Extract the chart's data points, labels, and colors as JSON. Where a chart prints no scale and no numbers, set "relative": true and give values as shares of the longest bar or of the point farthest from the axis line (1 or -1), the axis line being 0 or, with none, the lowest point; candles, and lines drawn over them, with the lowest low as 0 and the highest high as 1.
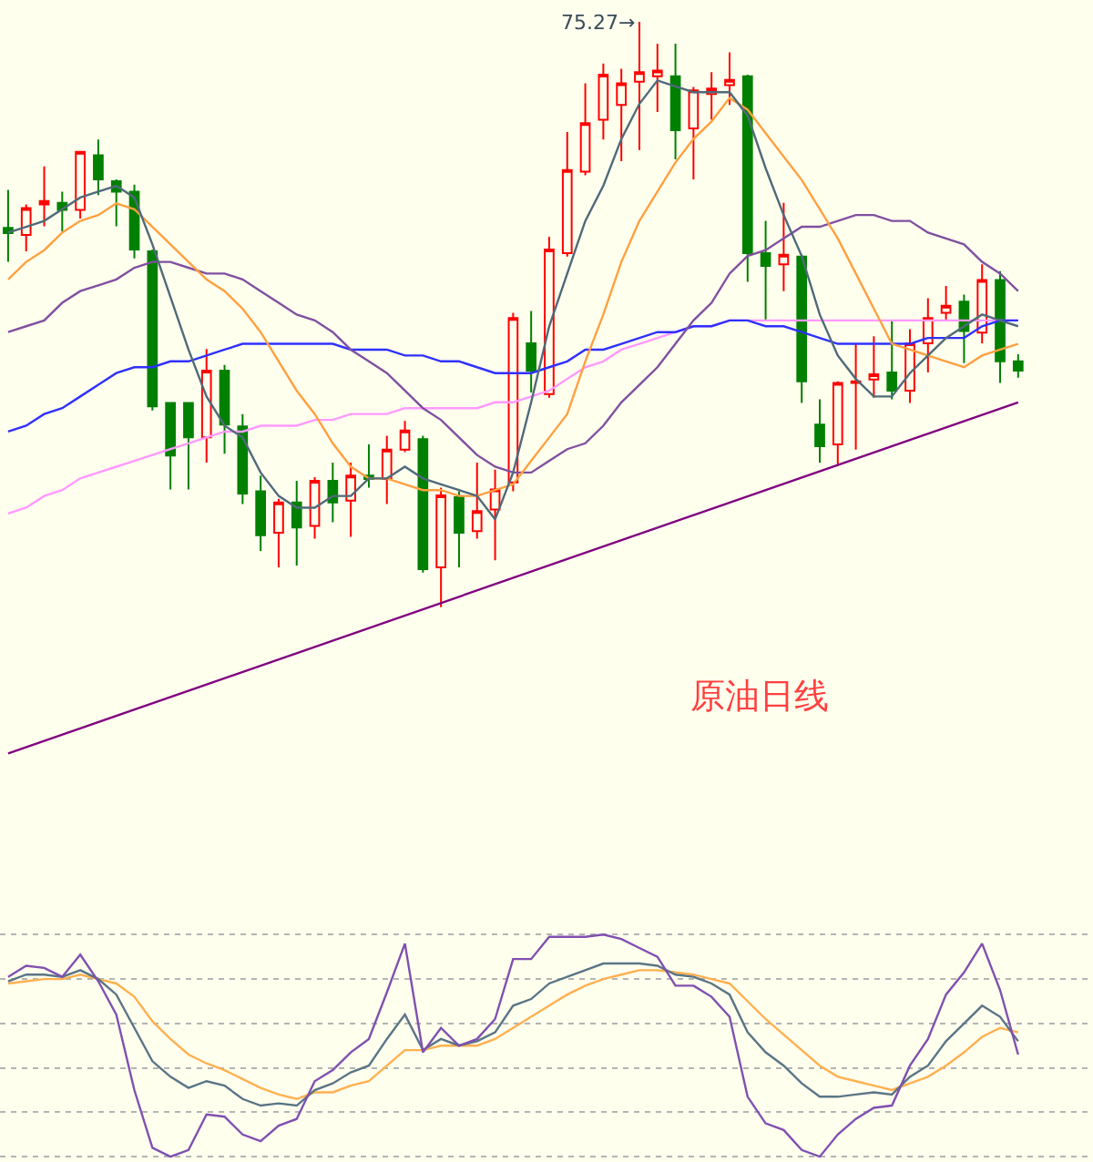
{
  "chart_data": [
    {
      "type": "candlestick",
      "relative": true,
      "title": "原油日线",
      "annotations": [
        "75.27→"
      ],
      "categories": [
        null,
        null,
        null,
        null,
        null,
        null,
        null,
        null,
        null,
        null,
        null,
        null,
        null,
        null,
        null,
        null,
        null,
        null,
        null,
        null,
        null,
        null,
        null,
        null,
        null,
        null,
        null,
        null,
        null,
        null,
        null,
        null,
        null,
        null,
        null,
        null,
        null,
        null,
        null,
        null,
        null,
        null,
        null,
        null,
        null,
        null,
        null,
        null,
        null,
        null,
        null,
        null,
        null,
        null,
        null,
        null,
        null
      ],
      "ohlc": [
        [
          0.648,
          0.713,
          0.59,
          0.639
        ],
        [
          0.636,
          0.688,
          0.608,
          0.682
        ],
        [
          0.688,
          0.753,
          0.651,
          0.694
        ],
        [
          0.691,
          0.71,
          0.642,
          0.679
        ],
        [
          0.679,
          0.778,
          0.664,
          0.778
        ],
        [
          0.772,
          0.799,
          0.704,
          0.731
        ],
        [
          0.728,
          0.731,
          0.651,
          0.71
        ],
        [
          0.71,
          0.722,
          0.596,
          0.611
        ],
        [
          0.608,
          0.611,
          0.336,
          0.343
        ],
        [
          0.349,
          0.349,
          0.201,
          0.259
        ],
        [
          0.349,
          0.349,
          0.201,
          0.29
        ],
        [
          0.29,
          0.441,
          0.247,
          0.404
        ],
        [
          0.404,
          0.414,
          0.262,
          0.312
        ],
        [
          0.309,
          0.33,
          0.176,
          0.194
        ],
        [
          0.198,
          0.225,
          0.096,
          0.123
        ],
        [
          0.127,
          0.185,
          0.068,
          0.179
        ],
        [
          0.179,
          0.216,
          0.071,
          0.136
        ],
        [
          0.139,
          0.222,
          0.117,
          0.216
        ],
        [
          0.216,
          0.247,
          0.145,
          0.179
        ],
        [
          0.182,
          0.247,
          0.12,
          0.225
        ],
        [
          0.225,
          0.278,
          0.204,
          0.219
        ],
        [
          0.219,
          0.293,
          0.176,
          0.269
        ],
        [
          0.269,
          0.318,
          0.265,
          0.302
        ],
        [
          0.287,
          0.293,
          0.059,
          0.065
        ],
        [
          0.068,
          0.204,
          0,
          0.191
        ],
        [
          0.188,
          0.198,
          0.068,
          0.127
        ],
        [
          0.13,
          0.247,
          0.117,
          0.164
        ],
        [
          0.167,
          0.235,
          0.08,
          0.201
        ],
        [
          0.213,
          0.503,
          0.198,
          0.494
        ],
        [
          0.451,
          0.506,
          0.367,
          0.404
        ],
        [
          0.364,
          0.633,
          0.358,
          0.611
        ],
        [
          0.605,
          0.812,
          0.599,
          0.747
        ],
        [
          0.744,
          0.895,
          0.738,
          0.827
        ],
        [
          0.833,
          0.929,
          0.799,
          0.91
        ],
        [
          0.858,
          0.92,
          0.762,
          0.895
        ],
        [
          0.898,
          1,
          0.781,
          0.914
        ],
        [
          0.907,
          0.963,
          0.846,
          0.917
        ],
        [
          0.907,
          0.963,
          0.765,
          0.815
        ],
        [
          0.818,
          0.889,
          0.731,
          0.883
        ],
        [
          0.877,
          0.914,
          0.833,
          0.886
        ],
        [
          0.892,
          0.948,
          0.858,
          0.901
        ],
        [
          0.907,
          0.91,
          0.556,
          0.605
        ],
        [
          0.605,
          0.66,
          0.491,
          0.583
        ],
        [
          0.586,
          0.691,
          0.54,
          0.602
        ],
        [
          0.599,
          0.602,
          0.349,
          0.386
        ],
        [
          0.312,
          0.355,
          0.247,
          0.275
        ],
        [
          0.278,
          0.386,
          0.241,
          0.383
        ],
        [
          0.383,
          0.451,
          0.269,
          0.386
        ],
        [
          0.389,
          0.463,
          0.358,
          0.398
        ],
        [
          0.401,
          0.488,
          0.355,
          0.37
        ],
        [
          0.37,
          0.475,
          0.349,
          0.451
        ],
        [
          0.451,
          0.528,
          0.401,
          0.494
        ],
        [
          0.503,
          0.549,
          0.491,
          0.515
        ],
        [
          0.522,
          0.534,
          0.417,
          0.472
        ],
        [
          0.469,
          0.586,
          0.451,
          0.559
        ],
        [
          0.559,
          0.574,
          0.383,
          0.42
        ],
        [
          0.42,
          0.432,
          0.392,
          0.404
        ]
      ],
      "series": [
        {
          "type": "line",
          "color": "#ff99ff",
          "values": [
            0.16,
            0.17,
            0.19,
            0.2,
            0.22,
            0.23,
            0.24,
            0.25,
            0.26,
            0.27,
            0.28,
            0.29,
            0.3,
            0.3,
            0.31,
            0.31,
            0.31,
            0.32,
            0.32,
            0.33,
            0.33,
            0.33,
            0.34,
            0.34,
            0.34,
            0.34,
            0.34,
            0.35,
            0.35,
            0.36,
            0.37,
            0.39,
            0.41,
            0.42,
            0.44,
            0.45,
            0.46,
            0.47,
            0.48,
            0.48,
            0.49,
            0.49,
            0.49,
            0.49,
            0.49,
            0.49,
            0.49,
            0.49,
            0.49,
            0.49,
            0.49,
            0.49,
            0.49,
            0.49,
            0.49,
            0.49,
            0.49
          ]
        },
        {
          "type": "line",
          "color": "#3030ff",
          "values": [
            0.3,
            0.31,
            0.33,
            0.34,
            0.36,
            0.38,
            0.4,
            0.41,
            0.41,
            0.42,
            0.42,
            0.43,
            0.44,
            0.45,
            0.45,
            0.45,
            0.45,
            0.45,
            0.45,
            0.44,
            0.44,
            0.44,
            0.43,
            0.43,
            0.42,
            0.42,
            0.41,
            0.4,
            0.4,
            0.4,
            0.41,
            0.42,
            0.44,
            0.44,
            0.45,
            0.46,
            0.47,
            0.47,
            0.48,
            0.48,
            0.49,
            0.49,
            0.48,
            0.48,
            0.47,
            0.46,
            0.45,
            0.45,
            0.45,
            0.45,
            0.45,
            0.46,
            0.46,
            0.46,
            0.48,
            0.49,
            0.49
          ]
        },
        {
          "type": "line",
          "color": "#8050a0",
          "values": [
            0.47,
            0.48,
            0.49,
            0.52,
            0.54,
            0.55,
            0.56,
            0.58,
            0.59,
            0.59,
            0.58,
            0.57,
            0.57,
            0.56,
            0.54,
            0.52,
            0.5,
            0.49,
            0.47,
            0.44,
            0.42,
            0.4,
            0.37,
            0.34,
            0.32,
            0.29,
            0.26,
            0.24,
            0.23,
            0.23,
            0.25,
            0.27,
            0.28,
            0.31,
            0.35,
            0.38,
            0.41,
            0.45,
            0.49,
            0.52,
            0.57,
            0.6,
            0.61,
            0.63,
            0.65,
            0.65,
            0.66,
            0.67,
            0.67,
            0.66,
            0.66,
            0.64,
            0.63,
            0.62,
            0.59,
            0.57,
            0.54
          ]
        },
        {
          "type": "line",
          "color": "#ffa040",
          "values": [
            0.56,
            0.59,
            0.61,
            0.64,
            0.66,
            0.67,
            0.69,
            0.68,
            0.65,
            0.62,
            0.59,
            0.56,
            0.54,
            0.51,
            0.47,
            0.42,
            0.37,
            0.33,
            0.28,
            0.24,
            0.22,
            0.22,
            0.21,
            0.2,
            0.2,
            0.19,
            0.19,
            0.2,
            0.21,
            0.25,
            0.29,
            0.33,
            0.42,
            0.5,
            0.59,
            0.66,
            0.71,
            0.76,
            0.8,
            0.83,
            0.87,
            0.85,
            0.81,
            0.77,
            0.73,
            0.68,
            0.63,
            0.57,
            0.51,
            0.45,
            0.44,
            0.43,
            0.42,
            0.41,
            0.43,
            0.44,
            0.45
          ]
        },
        {
          "type": "line",
          "color": "#4f6a7a",
          "values": [
            0.64,
            0.65,
            0.66,
            0.68,
            0.7,
            0.71,
            0.72,
            0.7,
            0.62,
            0.53,
            0.44,
            0.36,
            0.31,
            0.29,
            0.23,
            0.19,
            0.17,
            0.17,
            0.19,
            0.19,
            0.22,
            0.22,
            0.24,
            0.22,
            0.21,
            0.2,
            0.19,
            0.15,
            0.23,
            0.35,
            0.48,
            0.57,
            0.66,
            0.72,
            0.8,
            0.86,
            0.9,
            0.89,
            0.88,
            0.88,
            0.88,
            0.84,
            0.75,
            0.67,
            0.6,
            0.5,
            0.43,
            0.39,
            0.36,
            0.36,
            0.4,
            0.43,
            0.46,
            0.48,
            0.5,
            0.49,
            0.48
          ]
        },
        {
          "type": "line",
          "color": "#800080",
          "values": [
            -0.25,
            null,
            null,
            null,
            null,
            null,
            null,
            null,
            null,
            null,
            null,
            null,
            null,
            null,
            null,
            null,
            null,
            null,
            null,
            null,
            null,
            null,
            null,
            null,
            null,
            null,
            null,
            null,
            null,
            null,
            null,
            null,
            null,
            null,
            null,
            null,
            null,
            null,
            null,
            null,
            null,
            null,
            null,
            null,
            null,
            null,
            null,
            null,
            null,
            null,
            null,
            null,
            null,
            null,
            null,
            null,
            0.35
          ]
        }
      ]
    },
    {
      "type": "line",
      "relative": true,
      "grid": true,
      "categories": [
        null,
        null,
        null,
        null,
        null,
        null,
        null,
        null,
        null,
        null,
        null,
        null,
        null,
        null,
        null,
        null,
        null,
        null,
        null,
        null,
        null,
        null,
        null,
        null,
        null,
        null,
        null,
        null,
        null,
        null,
        null,
        null,
        null,
        null,
        null,
        null,
        null,
        null,
        null,
        null,
        null,
        null,
        null,
        null,
        null,
        null,
        null,
        null,
        null,
        null,
        null,
        null,
        null,
        null,
        null,
        null,
        null
      ],
      "series": [
        {
          "color": "#ffb050",
          "values": [
            0.78,
            0.79,
            0.8,
            0.8,
            0.82,
            0.8,
            0.78,
            0.72,
            0.61,
            0.53,
            0.46,
            0.42,
            0.39,
            0.35,
            0.31,
            0.28,
            0.26,
            0.29,
            0.29,
            0.32,
            0.34,
            0.41,
            0.48,
            0.48,
            0.5,
            0.5,
            0.5,
            0.53,
            0.58,
            0.63,
            0.68,
            0.73,
            0.77,
            0.8,
            0.82,
            0.84,
            0.84,
            0.83,
            0.82,
            0.8,
            0.78,
            0.7,
            0.62,
            0.55,
            0.48,
            0.41,
            0.36,
            0.34,
            0.32,
            0.3,
            0.33,
            0.36,
            0.41,
            0.47,
            0.54,
            0.58,
            0.56
          ]
        },
        {
          "color": "#5a7585",
          "values": [
            0.79,
            0.82,
            0.82,
            0.81,
            0.84,
            0.8,
            0.73,
            0.58,
            0.43,
            0.36,
            0.31,
            0.34,
            0.32,
            0.26,
            0.23,
            0.24,
            0.23,
            0.3,
            0.33,
            0.38,
            0.41,
            0.53,
            0.64,
            0.48,
            0.53,
            0.5,
            0.52,
            0.56,
            0.68,
            0.71,
            0.78,
            0.81,
            0.84,
            0.87,
            0.87,
            0.87,
            0.86,
            0.82,
            0.81,
            0.78,
            0.73,
            0.56,
            0.47,
            0.41,
            0.33,
            0.27,
            0.27,
            0.28,
            0.29,
            0.28,
            0.36,
            0.41,
            0.52,
            0.6,
            0.68,
            0.63,
            0.52
          ]
        },
        {
          "color": "#8050b0",
          "values": [
            0.81,
            0.86,
            0.85,
            0.81,
            0.91,
            0.79,
            0.64,
            0.3,
            0.04,
            0,
            0.03,
            0.19,
            0.18,
            0.1,
            0.07,
            0.14,
            0.17,
            0.34,
            0.39,
            0.47,
            0.53,
            0.74,
            0.96,
            0.47,
            0.58,
            0.5,
            0.53,
            0.62,
            0.89,
            0.89,
            0.99,
            0.99,
            0.99,
            1,
            0.98,
            0.94,
            0.9,
            0.77,
            0.77,
            0.72,
            0.63,
            0.27,
            0.15,
            0.12,
            0.03,
            0,
            0.1,
            0.17,
            0.22,
            0.23,
            0.41,
            0.53,
            0.73,
            0.83,
            0.96,
            0.75,
            0.46
          ]
        }
      ]
    }
  ]
}
